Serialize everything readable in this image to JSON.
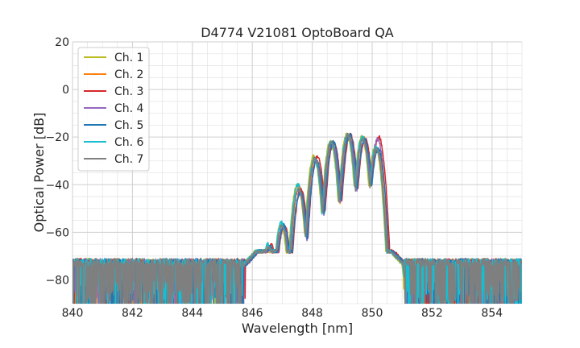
{
  "chart_data": {
    "type": "line",
    "title": "D4774 V21081 OptoBoard QA",
    "xlabel": "Wavelength [nm]",
    "ylabel": "Optical Power [dB]",
    "xlim": [
      840,
      855
    ],
    "ylim": [
      -90,
      20
    ],
    "xticks": [
      840,
      842,
      844,
      846,
      848,
      850,
      852,
      854
    ],
    "yticks": [
      20,
      0,
      -20,
      -40,
      -60,
      -80
    ],
    "xtick_labels": [
      "840",
      "842",
      "844",
      "846",
      "848",
      "850",
      "852",
      "854"
    ],
    "ytick_labels": [
      "20",
      "0",
      "−20",
      "−40",
      "−60",
      "−80"
    ],
    "grid": true,
    "legend_position": "top-left",
    "noise_floor_db": -76,
    "series": [
      {
        "name": "Ch. 1",
        "color": "#bcbd22",
        "shift_nm": 0.0,
        "peaks": [
          [
            846.5,
            -66
          ],
          [
            846.95,
            -57
          ],
          [
            847.5,
            -40
          ],
          [
            848.05,
            -28
          ],
          [
            848.6,
            -22
          ],
          [
            849.15,
            -19
          ],
          [
            849.65,
            -20
          ],
          [
            850.1,
            -24
          ]
        ]
      },
      {
        "name": "Ch. 2",
        "color": "#ff7f0e",
        "shift_nm": 0.06,
        "peaks": [
          [
            846.5,
            -66
          ],
          [
            846.95,
            -58
          ],
          [
            847.5,
            -41
          ],
          [
            848.05,
            -29
          ],
          [
            848.6,
            -22
          ],
          [
            849.15,
            -19
          ],
          [
            849.65,
            -20
          ],
          [
            850.1,
            -25
          ]
        ]
      },
      {
        "name": "Ch. 3",
        "color": "#d62728",
        "shift_nm": 0.12,
        "peaks": [
          [
            846.5,
            -65
          ],
          [
            846.95,
            -57
          ],
          [
            847.5,
            -42
          ],
          [
            848.05,
            -28
          ],
          [
            848.6,
            -22
          ],
          [
            849.15,
            -19
          ],
          [
            849.65,
            -21
          ],
          [
            850.1,
            -20
          ]
        ]
      },
      {
        "name": "Ch. 4",
        "color": "#9467bd",
        "shift_nm": 0.08,
        "peaks": [
          [
            846.5,
            -67
          ],
          [
            846.95,
            -58
          ],
          [
            847.5,
            -44
          ],
          [
            848.05,
            -30
          ],
          [
            848.6,
            -23
          ],
          [
            849.15,
            -20
          ],
          [
            849.65,
            -22
          ],
          [
            850.1,
            -21
          ]
        ]
      },
      {
        "name": "Ch. 5",
        "color": "#1f77b4",
        "shift_nm": 0.1,
        "peaks": [
          [
            846.5,
            -66
          ],
          [
            846.95,
            -57
          ],
          [
            847.5,
            -43
          ],
          [
            848.05,
            -30
          ],
          [
            848.6,
            -22
          ],
          [
            849.15,
            -19
          ],
          [
            849.65,
            -21
          ],
          [
            850.1,
            -25
          ]
        ]
      },
      {
        "name": "Ch. 6",
        "color": "#17becf",
        "shift_nm": 0.02,
        "peaks": [
          [
            846.5,
            -65
          ],
          [
            846.95,
            -56
          ],
          [
            847.5,
            -40
          ],
          [
            848.05,
            -29
          ],
          [
            848.6,
            -22
          ],
          [
            849.15,
            -19
          ],
          [
            849.65,
            -20
          ],
          [
            850.1,
            -24
          ]
        ]
      },
      {
        "name": "Ch. 7",
        "color": "#7f7f7f",
        "shift_nm": 0.04,
        "peaks": [
          [
            846.5,
            -66
          ],
          [
            846.95,
            -57
          ],
          [
            847.5,
            -42
          ],
          [
            848.05,
            -29
          ],
          [
            848.6,
            -22
          ],
          [
            849.15,
            -19
          ],
          [
            849.65,
            -21
          ],
          [
            850.1,
            -25
          ]
        ]
      }
    ]
  }
}
